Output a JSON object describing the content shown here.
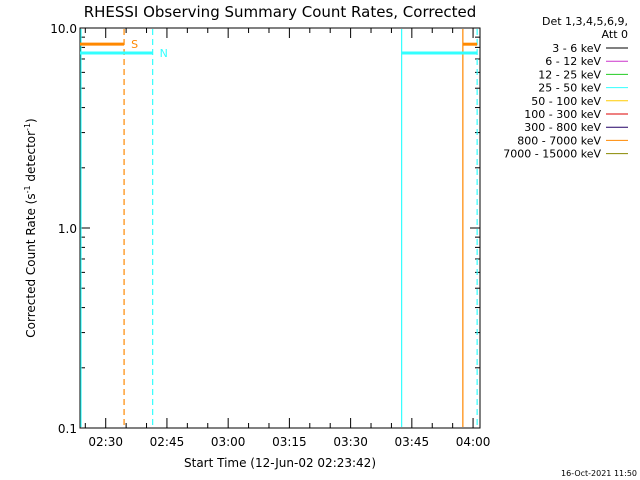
{
  "chart_data": {
    "type": "line",
    "title": "RHESSI Observing Summary Count Rates, Corrected",
    "xlabel": "Start Time (12-Jun-02 02:23:42)",
    "ylabel_main": "Corrected Count Rate (s",
    "ylabel_sup1": "-1",
    "ylabel_mid": " detector",
    "ylabel_sup2": "-1",
    "ylabel_end": ")",
    "y_scale": "log",
    "ylim": [
      0.1,
      10.0
    ],
    "y_ticks": [
      {
        "value": 0.1,
        "label": "0.1"
      },
      {
        "value": 1.0,
        "label": "1.0"
      },
      {
        "value": 10.0,
        "label": "10.0"
      }
    ],
    "xlim": [
      "02:23:42",
      "04:01:42"
    ],
    "x_ticks": [
      {
        "time": "02:30",
        "label": "02:30"
      },
      {
        "time": "02:45",
        "label": "02:45"
      },
      {
        "time": "03:00",
        "label": "03:00"
      },
      {
        "time": "03:15",
        "label": "03:15"
      },
      {
        "time": "03:30",
        "label": "03:30"
      },
      {
        "time": "03:45",
        "label": "03:45"
      },
      {
        "time": "04:00",
        "label": "04:00"
      }
    ],
    "legend": {
      "placement": "right",
      "header": [
        "Det 1,3,4,5,6,9,",
        "Att 0"
      ],
      "entries": [
        {
          "label": "3 - 6 keV",
          "color": "#000000"
        },
        {
          "label": "6 - 12 keV",
          "color": "#cc33cc"
        },
        {
          "label": "12 - 25 keV",
          "color": "#22cc22"
        },
        {
          "label": "25 - 50 keV",
          "color": "#33ffff"
        },
        {
          "label": "50 - 100 keV",
          "color": "#ffcc00"
        },
        {
          "label": "100 - 300 keV",
          "color": "#dd0000"
        },
        {
          "label": "300 - 800 keV",
          "color": "#220066"
        },
        {
          "label": "800 - 7000 keV",
          "color": "#ff8800"
        },
        {
          "label": "7000 - 15000 keV",
          "color": "#888800"
        }
      ]
    },
    "bars": [
      {
        "label": "S",
        "color": "#ff8800",
        "y": 8.3,
        "start": "02:23:42",
        "end": "02:34:30"
      },
      {
        "label": "",
        "color": "#ff8800",
        "y": 8.3,
        "start": "03:57:30",
        "end": "04:01:00"
      },
      {
        "label": "N",
        "color": "#33ffff",
        "y": 7.5,
        "start": "02:23:42",
        "end": "02:41:30"
      },
      {
        "label": "",
        "color": "#33ffff",
        "y": 7.5,
        "start": "03:42:30",
        "end": "04:01:00"
      }
    ],
    "vlines": [
      {
        "time": "02:34:30",
        "color": "#ff8800",
        "style": "dashed"
      },
      {
        "time": "02:41:30",
        "color": "#33ffff",
        "style": "dashed"
      },
      {
        "time": "02:23:42",
        "color": "#33ffff",
        "style": "solid"
      },
      {
        "time": "03:42:30",
        "color": "#33ffff",
        "style": "solid"
      },
      {
        "time": "03:57:30",
        "color": "#ff8800",
        "style": "solid"
      },
      {
        "time": "04:01:00",
        "color": "#33ffff",
        "style": "dashed"
      }
    ],
    "timestamp": "16-Oct-2021 11:50"
  }
}
